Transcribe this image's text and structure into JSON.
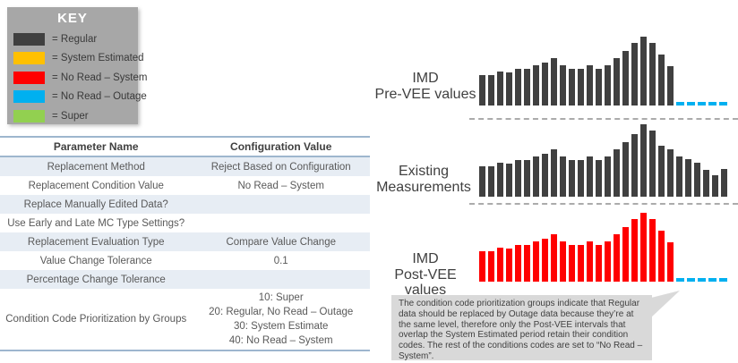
{
  "key": {
    "title": "KEY",
    "items": [
      {
        "label": "= Regular",
        "color": "#404040"
      },
      {
        "label": "= System Estimated",
        "color": "#FFC000"
      },
      {
        "label": "= No Read – System",
        "color": "#FF0000"
      },
      {
        "label": "= No Read – Outage",
        "color": "#00B0F0"
      },
      {
        "label": "= Super",
        "color": "#92D050"
      }
    ]
  },
  "table": {
    "headers": [
      "Parameter Name",
      "Configuration Value"
    ],
    "rows": [
      {
        "name": "Replacement Method",
        "value_lines": [
          "Reject Based on Configuration"
        ]
      },
      {
        "name": "Replacement Condition Value",
        "value_lines": [
          "No Read – System"
        ]
      },
      {
        "name": "Replace Manually Edited Data?",
        "value_lines": [
          ""
        ]
      },
      {
        "name": "Use Early and Late MC Type Settings?",
        "value_lines": [
          ""
        ]
      },
      {
        "name": "Replacement Evaluation Type",
        "value_lines": [
          "Compare Value Change"
        ]
      },
      {
        "name": "Value Change Tolerance",
        "value_lines": [
          "0.1"
        ]
      },
      {
        "name": "Percentage Change Tolerance",
        "value_lines": [
          ""
        ]
      },
      {
        "name": "Condition Code Prioritization by Groups",
        "value_lines": [
          "10: Super",
          "20: Regular, No Read – Outage",
          "30: System Estimate",
          "40: No Read – System"
        ]
      }
    ]
  },
  "chart_data": [
    {
      "type": "bar",
      "title": "IMD Pre-VEE values",
      "label_lines": [
        "IMD",
        "Pre-VEE values"
      ],
      "bar_color": "#404040",
      "values": [
        34,
        34,
        38,
        37,
        41,
        41,
        45,
        48,
        53,
        45,
        41,
        41,
        45,
        41,
        45,
        53,
        61,
        70,
        77,
        70,
        57,
        44
      ],
      "trailing_outage_dashes": {
        "count": 5,
        "color": "#00B0F0"
      },
      "note": "values are relative magnitudes; chart has no axes, gridlines or tick labels"
    },
    {
      "type": "bar",
      "title": "Existing Measurements",
      "label_lines": [
        "Existing",
        "Measurements"
      ],
      "bar_color": "#404040",
      "values": [
        34,
        34,
        38,
        37,
        41,
        41,
        45,
        48,
        53,
        45,
        41,
        41,
        45,
        41,
        45,
        53,
        61,
        70,
        81,
        74,
        57,
        53,
        45,
        42,
        38,
        30,
        24,
        31
      ],
      "trailing_outage_dashes": {
        "count": 0,
        "color": "#00B0F0"
      },
      "note": "values are relative magnitudes; chart has no axes, gridlines or tick labels"
    },
    {
      "type": "bar",
      "title": "IMD Post-VEE values",
      "label_lines": [
        "IMD",
        "Post-VEE values"
      ],
      "bar_color": "#FF0000",
      "values": [
        34,
        34,
        38,
        37,
        41,
        41,
        45,
        48,
        53,
        45,
        41,
        41,
        45,
        41,
        45,
        53,
        61,
        70,
        77,
        70,
        57,
        44
      ],
      "trailing_outage_dashes": {
        "count": 5,
        "color": "#00B0F0"
      },
      "note": "values are relative magnitudes; chart has no axes, gridlines or tick labels"
    }
  ],
  "callout": {
    "text": "The condition code prioritization groups indicate that Regular data should be replaced by Outage data because they’re at the same level, therefore only the Post-VEE intervals that overlap the System Estimated period retain their condition codes.  The rest of the conditions codes are set to “No Read – System”.",
    "background": "#d9d9d9"
  },
  "colors": {
    "regular": "#404040",
    "system_estimated": "#FFC000",
    "no_read_system": "#FF0000",
    "no_read_outage": "#00B0F0",
    "super": "#92D050",
    "key_background": "#a7a7a7",
    "table_stripe": "#e7edf4",
    "table_border": "#9eb6ce",
    "separator": "#ababab"
  }
}
